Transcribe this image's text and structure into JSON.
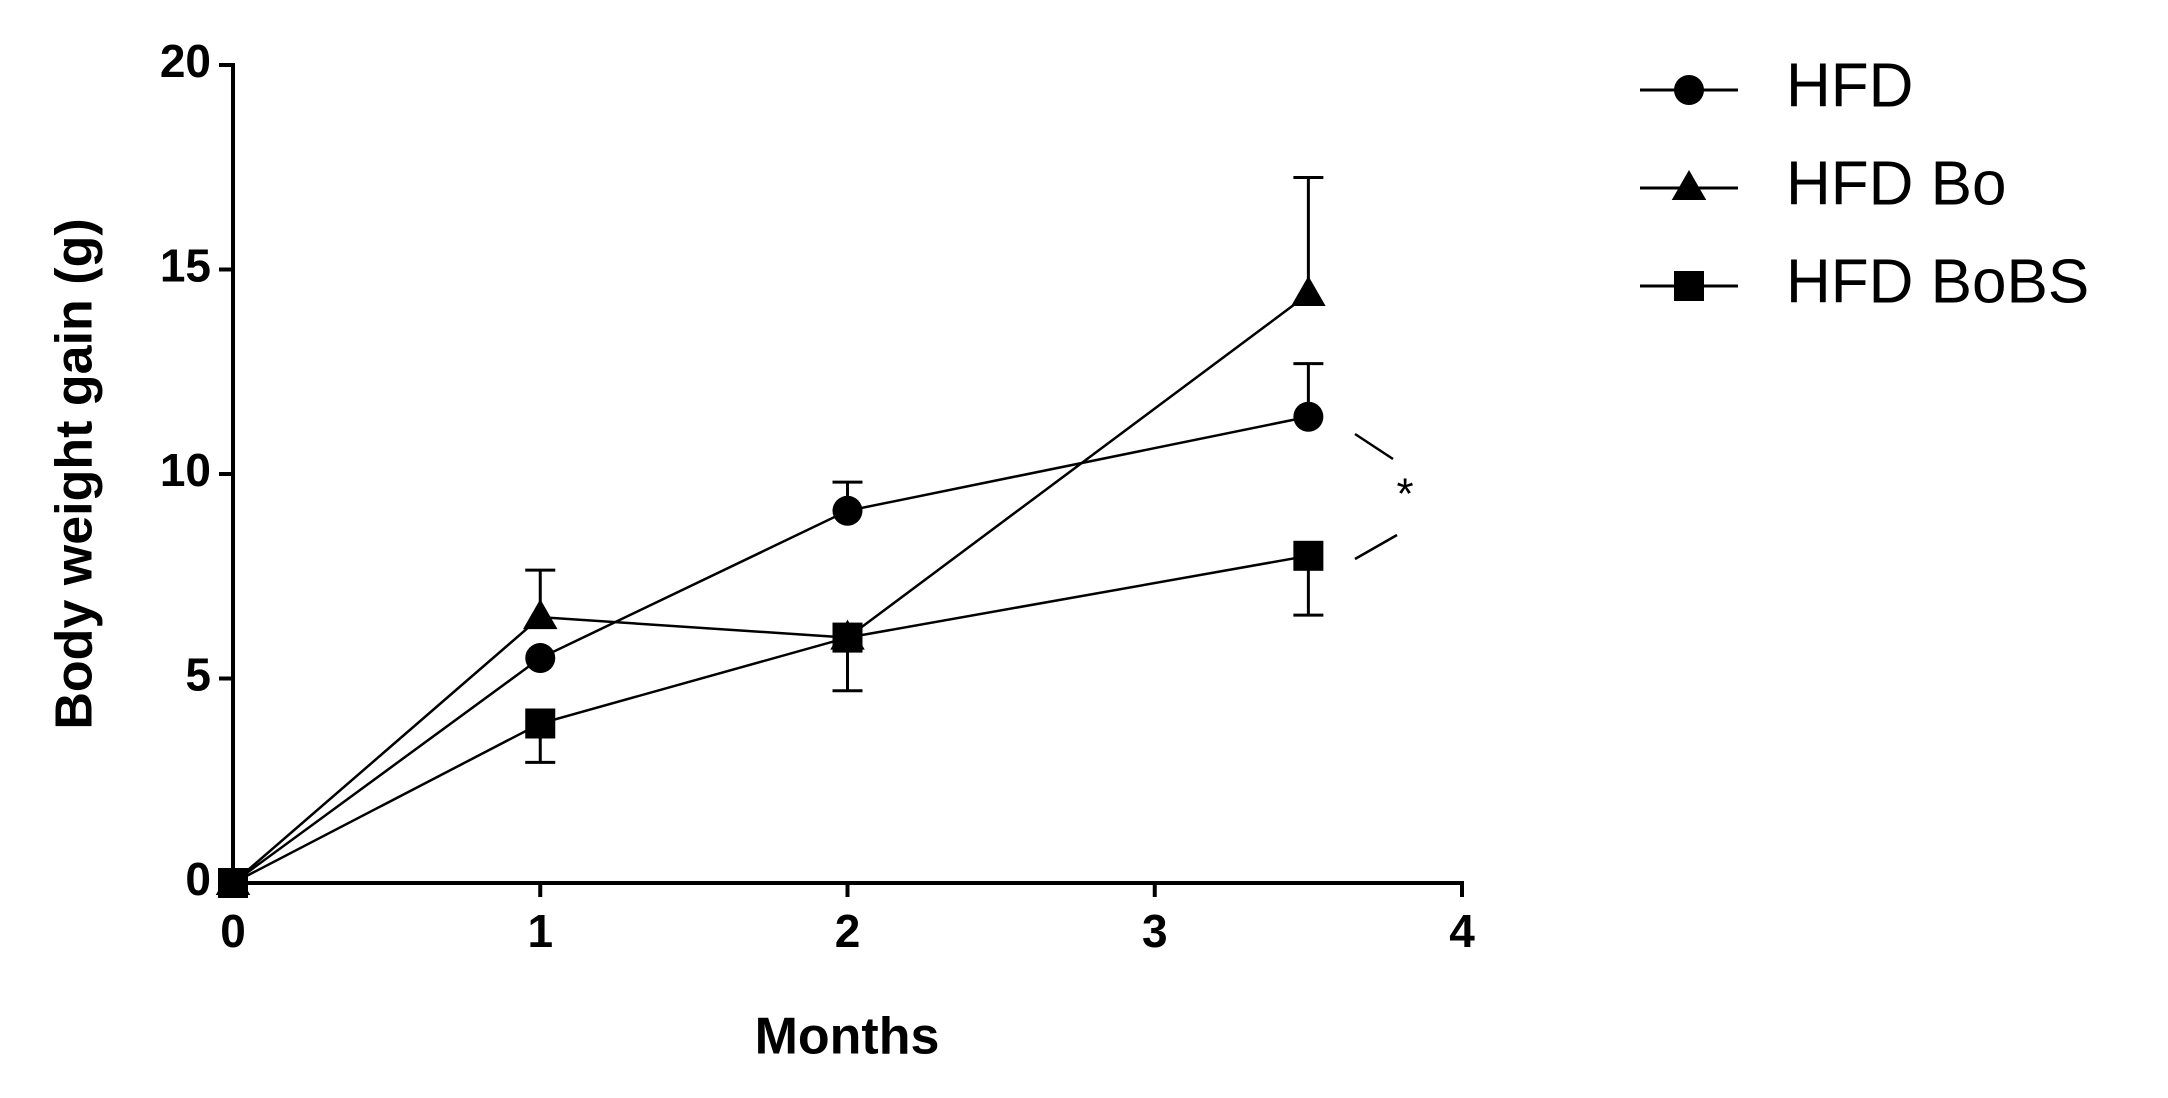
{
  "chart_data": {
    "type": "line",
    "xlabel": "Months",
    "ylabel": "Body weight gain (g)",
    "xlim": [
      0,
      4
    ],
    "xticks": [
      0,
      1,
      2,
      3,
      4
    ],
    "ylim": [
      0,
      20
    ],
    "yticks": [
      0,
      5,
      10,
      15,
      20
    ],
    "legend": "top-right",
    "annotation": "*",
    "series": [
      {
        "name": "HFD",
        "color": "#000000",
        "marker": "circle",
        "error_direction": "up",
        "x": [
          0,
          1,
          2,
          3.5
        ],
        "values": [
          0,
          5.5,
          9.1,
          11.4
        ],
        "errors": [
          null,
          null,
          0.7,
          1.3
        ]
      },
      {
        "name": "HFD Bo",
        "color": "#000000",
        "marker": "triangle",
        "error_direction": "up",
        "x": [
          0,
          1,
          2,
          3.5
        ],
        "values": [
          0,
          6.5,
          6.0,
          14.4
        ],
        "errors": [
          null,
          1.15,
          null,
          2.85
        ]
      },
      {
        "name": "HFD BoBS",
        "color": "#000000",
        "marker": "square",
        "error_direction": "down",
        "x": [
          0,
          1,
          2,
          3.5
        ],
        "values": [
          0,
          3.9,
          6.0,
          8.0
        ],
        "errors": [
          null,
          0.95,
          1.3,
          1.45
        ]
      }
    ]
  }
}
